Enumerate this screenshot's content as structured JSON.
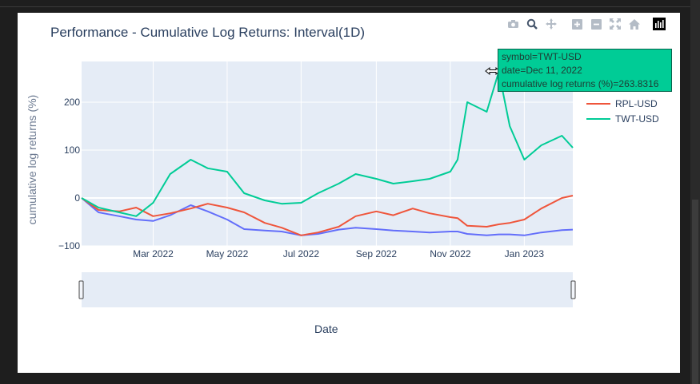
{
  "app": {
    "title": "Performance - Cumulative Log Returns: Interval(1D)"
  },
  "modebar": {
    "icons": [
      "camera-icon",
      "zoom-icon",
      "pan-icon",
      "zoom-in-icon",
      "zoom-out-icon",
      "autoscale-icon",
      "reset-axes-icon",
      "plotly-logo-icon"
    ]
  },
  "tooltip": {
    "line1": "symbol=TWT-USD",
    "line2": "date=Dec 11, 2022",
    "line3": "cumulative log returns (%)=263.8316"
  },
  "colors": {
    "plot_bg": "#e5ecf6",
    "rpl": "#ef553b",
    "twt": "#00cc96",
    "third": "#636efa",
    "text": "#2a3f5f"
  },
  "chart_data": {
    "type": "line",
    "title": "Performance - Cumulative Log Returns: Interval(1D)",
    "xlabel": "Date",
    "ylabel": "cumulative log returns (%)",
    "x": [
      "2022-01-01",
      "2022-01-15",
      "2022-02-01",
      "2022-02-15",
      "2022-03-01",
      "2022-03-15",
      "2022-04-01",
      "2022-04-15",
      "2022-05-01",
      "2022-05-15",
      "2022-06-01",
      "2022-06-15",
      "2022-07-01",
      "2022-07-15",
      "2022-08-01",
      "2022-08-15",
      "2022-09-01",
      "2022-09-15",
      "2022-10-01",
      "2022-10-15",
      "2022-11-01",
      "2022-11-07",
      "2022-11-15",
      "2022-12-01",
      "2022-12-11",
      "2022-12-20",
      "2023-01-01",
      "2023-01-15",
      "2023-02-01",
      "2023-02-10"
    ],
    "series": [
      {
        "name": "RPL-USD",
        "values": [
          0,
          -25,
          -28,
          -20,
          -38,
          -32,
          -22,
          -12,
          -20,
          -30,
          -52,
          -62,
          -78,
          -72,
          -60,
          -38,
          -28,
          -36,
          -22,
          -32,
          -40,
          -42,
          -58,
          -60,
          -55,
          -52,
          -45,
          -22,
          0,
          5
        ]
      },
      {
        "name": "TWT-USD",
        "values": [
          0,
          -20,
          -30,
          -38,
          -10,
          50,
          80,
          62,
          55,
          10,
          -5,
          -12,
          -10,
          10,
          30,
          50,
          40,
          30,
          35,
          40,
          55,
          80,
          200,
          180,
          263.8,
          150,
          80,
          110,
          130,
          105
        ]
      },
      {
        "values": [
          0,
          -30,
          -38,
          -45,
          -48,
          -36,
          -15,
          -28,
          -45,
          -65,
          -68,
          -70,
          -78,
          -75,
          -66,
          -62,
          -65,
          -68,
          -70,
          -72,
          -70,
          -70,
          -75,
          -78,
          -76,
          -76,
          -78,
          -72,
          -67,
          -66
        ]
      }
    ],
    "xticks": [
      "Mar 2022",
      "May 2022",
      "Jul 2022",
      "Sep 2022",
      "Nov 2022",
      "Jan 2023"
    ],
    "yticks": [
      "−100",
      "0",
      "100",
      "200"
    ],
    "ylim": [
      -100,
      285
    ],
    "xlim": [
      "2022-01-01",
      "2023-02-10"
    ],
    "grid": true,
    "legend": "right",
    "rangeslider": true
  }
}
